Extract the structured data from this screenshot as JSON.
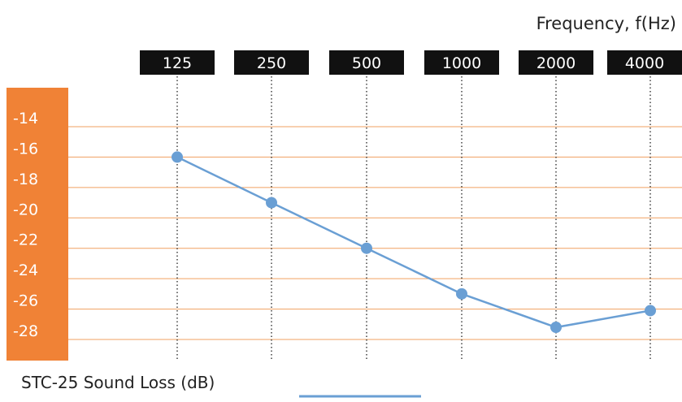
{
  "chart_data": {
    "type": "line",
    "x_title": "Frequency, f(Hz)",
    "categories": [
      "125",
      "250",
      "500",
      "1000",
      "2000",
      "4000"
    ],
    "y_ticks": [
      -14,
      -16,
      -18,
      -20,
      -22,
      -24,
      -26,
      -28
    ],
    "ylim": [
      -29,
      -12
    ],
    "series": [
      {
        "name": "STC-25 Sound Loss (dB)",
        "values": [
          -16,
          -19,
          -22,
          -25,
          -27.2,
          -26.1
        ]
      }
    ],
    "legend_position": "bottom-left",
    "colors": {
      "axis_band": "#f08236",
      "gridline": "#f0a060",
      "category_box": "#111111",
      "series": "#6a9fd4"
    }
  }
}
